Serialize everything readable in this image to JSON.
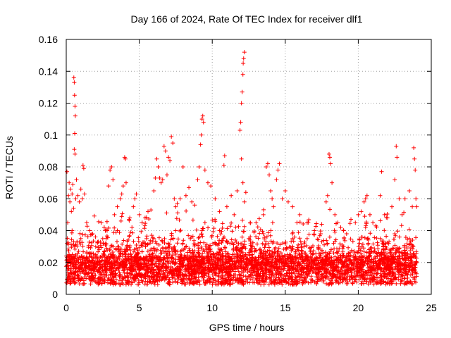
{
  "chart_data": {
    "type": "scatter",
    "title": "Day 166 of 2024, Rate Of TEC Index for receiver dlf1",
    "xlabel": "GPS time / hours",
    "ylabel": "ROTI / TECUs",
    "xlim": [
      0,
      25
    ],
    "ylim": [
      0,
      0.16
    ],
    "xticks": [
      0,
      5,
      10,
      15,
      20,
      25
    ],
    "xtick_labels": [
      "0",
      "5",
      "10",
      "15",
      "20",
      "25"
    ],
    "yticks": [
      0,
      0.02,
      0.04,
      0.06,
      0.08,
      0.1,
      0.12,
      0.14,
      0.16
    ],
    "ytick_labels": [
      "0",
      "0.02",
      "0.04",
      "0.06",
      "0.08",
      "0.1",
      "0.12",
      "0.14",
      "0.16"
    ],
    "grid": true,
    "marker": "+",
    "series_color": "#ff0000",
    "series": [
      {
        "name": "ROTI",
        "points": [
          [
            0.05,
            0.077
          ],
          [
            0.1,
            0.045
          ],
          [
            0.15,
            0.062
          ],
          [
            0.2,
            0.07
          ],
          [
            0.25,
            0.058
          ],
          [
            0.3,
            0.066
          ],
          [
            0.35,
            0.052
          ],
          [
            0.4,
            0.063
          ],
          [
            0.45,
            0.069
          ],
          [
            0.5,
            0.054
          ],
          [
            0.52,
            0.136
          ],
          [
            0.55,
            0.133
          ],
          [
            0.57,
            0.125
          ],
          [
            0.6,
            0.118
          ],
          [
            0.62,
            0.112
          ],
          [
            0.58,
            0.101
          ],
          [
            0.55,
            0.091
          ],
          [
            0.6,
            0.088
          ],
          [
            0.65,
            0.06
          ],
          [
            0.7,
            0.072
          ],
          [
            0.8,
            0.062
          ],
          [
            0.9,
            0.058
          ],
          [
            1.0,
            0.066
          ],
          [
            1.1,
            0.06
          ],
          [
            1.15,
            0.081
          ],
          [
            1.2,
            0.079
          ],
          [
            1.25,
            0.063
          ],
          [
            1.4,
            0.045
          ],
          [
            1.6,
            0.04
          ],
          [
            1.8,
            0.038
          ],
          [
            2.0,
            0.036
          ],
          [
            2.2,
            0.033
          ],
          [
            2.4,
            0.045
          ],
          [
            2.6,
            0.042
          ],
          [
            2.8,
            0.04
          ],
          [
            2.9,
            0.068
          ],
          [
            3.0,
            0.078
          ],
          [
            3.1,
            0.08
          ],
          [
            3.2,
            0.072
          ],
          [
            3.3,
            0.05
          ],
          [
            3.5,
            0.055
          ],
          [
            3.7,
            0.06
          ],
          [
            3.8,
            0.063
          ],
          [
            3.9,
            0.068
          ],
          [
            4.0,
            0.086
          ],
          [
            4.05,
            0.085
          ],
          [
            4.1,
            0.07
          ],
          [
            4.3,
            0.047
          ],
          [
            4.5,
            0.042
          ],
          [
            4.6,
            0.055
          ],
          [
            4.7,
            0.06
          ],
          [
            4.8,
            0.063
          ],
          [
            5.0,
            0.05
          ],
          [
            5.2,
            0.045
          ],
          [
            5.4,
            0.048
          ],
          [
            5.6,
            0.052
          ],
          [
            5.8,
            0.053
          ],
          [
            6.0,
            0.065
          ],
          [
            6.1,
            0.073
          ],
          [
            6.2,
            0.085
          ],
          [
            6.3,
            0.08
          ],
          [
            6.4,
            0.073
          ],
          [
            6.5,
            0.07
          ],
          [
            6.6,
            0.072
          ],
          [
            6.7,
            0.093
          ],
          [
            6.8,
            0.09
          ],
          [
            6.9,
            0.075
          ],
          [
            7.0,
            0.086
          ],
          [
            7.1,
            0.084
          ],
          [
            7.2,
            0.099
          ],
          [
            7.3,
            0.095
          ],
          [
            7.4,
            0.06
          ],
          [
            7.5,
            0.055
          ],
          [
            7.6,
            0.057
          ],
          [
            7.8,
            0.06
          ],
          [
            8.0,
            0.08
          ],
          [
            8.2,
            0.062
          ],
          [
            8.4,
            0.067
          ],
          [
            8.6,
            0.058
          ],
          [
            8.8,
            0.056
          ],
          [
            9.0,
            0.072
          ],
          [
            9.1,
            0.08
          ],
          [
            9.2,
            0.094
          ],
          [
            9.25,
            0.1
          ],
          [
            9.3,
            0.11
          ],
          [
            9.35,
            0.112
          ],
          [
            9.4,
            0.108
          ],
          [
            9.5,
            0.078
          ],
          [
            9.7,
            0.07
          ],
          [
            9.9,
            0.068
          ],
          [
            10.2,
            0.06
          ],
          [
            10.5,
            0.052
          ],
          [
            10.8,
            0.081
          ],
          [
            10.85,
            0.087
          ],
          [
            11.0,
            0.055
          ],
          [
            11.3,
            0.062
          ],
          [
            11.5,
            0.05
          ],
          [
            11.7,
            0.065
          ],
          [
            11.9,
            0.103
          ],
          [
            11.95,
            0.108
          ],
          [
            12.0,
            0.12
          ],
          [
            12.05,
            0.127
          ],
          [
            12.1,
            0.138
          ],
          [
            12.12,
            0.145
          ],
          [
            12.15,
            0.148
          ],
          [
            12.2,
            0.152
          ],
          [
            12.0,
            0.085
          ],
          [
            12.1,
            0.07
          ],
          [
            12.2,
            0.058
          ],
          [
            12.3,
            0.064
          ],
          [
            12.6,
            0.045
          ],
          [
            13.0,
            0.045
          ],
          [
            13.5,
            0.05
          ],
          [
            13.7,
            0.08
          ],
          [
            13.8,
            0.082
          ],
          [
            13.9,
            0.075
          ],
          [
            14.0,
            0.065
          ],
          [
            14.1,
            0.06
          ],
          [
            14.2,
            0.055
          ],
          [
            14.4,
            0.072
          ],
          [
            14.5,
            0.078
          ],
          [
            14.6,
            0.082
          ],
          [
            14.8,
            0.06
          ],
          [
            15.0,
            0.065
          ],
          [
            15.2,
            0.058
          ],
          [
            15.5,
            0.055
          ],
          [
            15.8,
            0.045
          ],
          [
            16.0,
            0.05
          ],
          [
            16.5,
            0.045
          ],
          [
            17.0,
            0.04
          ],
          [
            17.5,
            0.044
          ],
          [
            17.8,
            0.058
          ],
          [
            17.9,
            0.062
          ],
          [
            18.0,
            0.088
          ],
          [
            18.05,
            0.086
          ],
          [
            18.1,
            0.082
          ],
          [
            18.2,
            0.07
          ],
          [
            18.4,
            0.05
          ],
          [
            18.6,
            0.045
          ],
          [
            18.8,
            0.042
          ],
          [
            19.0,
            0.04
          ],
          [
            19.2,
            0.038
          ],
          [
            19.5,
            0.047
          ],
          [
            19.8,
            0.045
          ],
          [
            20.0,
            0.05
          ],
          [
            20.2,
            0.052
          ],
          [
            20.4,
            0.058
          ],
          [
            20.5,
            0.06
          ],
          [
            20.6,
            0.062
          ],
          [
            20.8,
            0.05
          ],
          [
            21.0,
            0.045
          ],
          [
            21.2,
            0.043
          ],
          [
            21.5,
            0.062
          ],
          [
            21.6,
            0.077
          ],
          [
            21.8,
            0.05
          ],
          [
            22.0,
            0.048
          ],
          [
            22.3,
            0.055
          ],
          [
            22.5,
            0.072
          ],
          [
            22.6,
            0.093
          ],
          [
            22.65,
            0.086
          ],
          [
            22.8,
            0.06
          ],
          [
            23.0,
            0.05
          ],
          [
            23.2,
            0.06
          ],
          [
            23.5,
            0.065
          ],
          [
            23.7,
            0.055
          ],
          [
            23.8,
            0.092
          ],
          [
            23.85,
            0.085
          ],
          [
            23.9,
            0.078
          ],
          [
            23.95,
            0.06
          ],
          [
            24.0,
            0.055
          ],
          [
            0.4,
            0.04
          ],
          [
            1.0,
            0.035
          ],
          [
            2.5,
            0.035
          ],
          [
            3.5,
            0.04
          ],
          [
            6.0,
            0.035
          ],
          [
            8.5,
            0.035
          ],
          [
            9.5,
            0.045
          ],
          [
            10.5,
            0.04
          ],
          [
            12.5,
            0.035
          ],
          [
            13.5,
            0.038
          ],
          [
            15.5,
            0.035
          ],
          [
            16.5,
            0.035
          ],
          [
            17.5,
            0.033
          ],
          [
            19.0,
            0.03
          ],
          [
            20.5,
            0.042
          ],
          [
            21.5,
            0.035
          ],
          [
            22.5,
            0.038
          ],
          [
            23.5,
            0.035
          ],
          [
            5.5,
            0.035
          ],
          [
            7.5,
            0.04
          ]
        ]
      }
    ]
  }
}
